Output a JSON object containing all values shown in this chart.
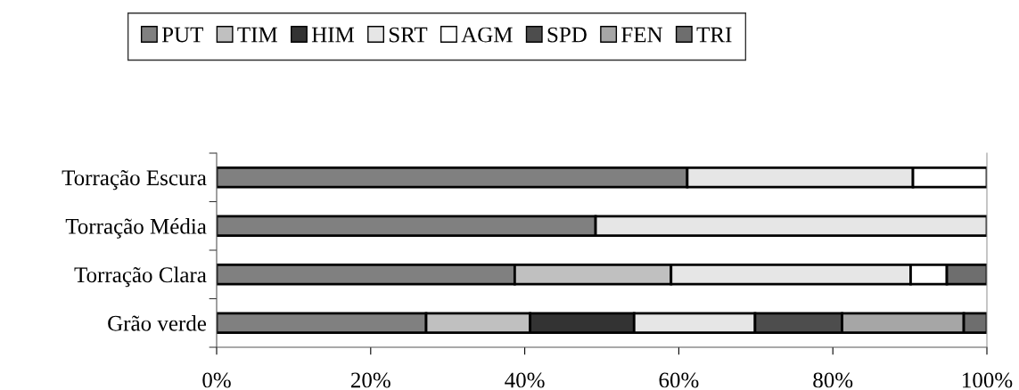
{
  "chart_data": {
    "type": "bar",
    "orientation": "horizontal",
    "stacked": true,
    "categories": [
      "Torração Escura",
      "Torração Média",
      "Torração Clara",
      "Grão verde"
    ],
    "series": [
      {
        "name": "PUT",
        "color": "#808080",
        "values": [
          61.1,
          49.2,
          38.7,
          27.2
        ]
      },
      {
        "name": "TIM",
        "color": "#c0c0c0",
        "values": [
          null,
          null,
          20.3,
          13.5
        ]
      },
      {
        "name": "HIM",
        "color": "#333333",
        "values": [
          null,
          null,
          null,
          13.5
        ]
      },
      {
        "name": "SRT",
        "color": "#e6e6e6",
        "values": [
          29.3,
          50.8,
          31.1,
          15.7
        ]
      },
      {
        "name": "AGM",
        "color": "#ffffff",
        "values": [
          9.6,
          null,
          4.7,
          null
        ]
      },
      {
        "name": "SPD",
        "color": "#4d4d4d",
        "values": [
          null,
          null,
          null,
          11.3
        ]
      },
      {
        "name": "FEN",
        "color": "#a6a6a6",
        "values": [
          null,
          null,
          null,
          15.8
        ]
      },
      {
        "name": "TRI",
        "color": "#6e6e6e",
        "values": [
          null,
          null,
          5.2,
          3.0
        ]
      }
    ],
    "xlim": [
      0,
      100
    ],
    "xticks": [
      {
        "value": 0,
        "label": "0%"
      },
      {
        "value": 20,
        "label": "20%"
      },
      {
        "value": 40,
        "label": "40%"
      },
      {
        "value": 60,
        "label": "60%"
      },
      {
        "value": 80,
        "label": "80%"
      },
      {
        "value": 100,
        "label": "100%"
      }
    ],
    "grid": false,
    "legend": "top"
  }
}
